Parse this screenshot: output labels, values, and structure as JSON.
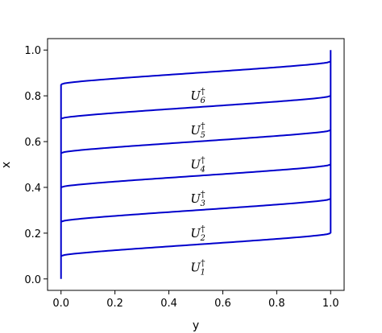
{
  "chart_data": {
    "type": "line",
    "xlabel": "y",
    "ylabel": "x",
    "xlim": [
      -0.05,
      1.05
    ],
    "ylim": [
      -0.05,
      1.05
    ],
    "xticks": [
      "0.0",
      "0.2",
      "0.4",
      "0.6",
      "0.8",
      "1.0"
    ],
    "yticks": [
      "0.0",
      "0.2",
      "0.4",
      "0.6",
      "0.8",
      "1.0"
    ],
    "grid": false,
    "line_color": "#0000cc",
    "series": [
      {
        "name": "U_1^†",
        "base": "U",
        "sub": "1",
        "sup": "†",
        "x_at_left": 0.1,
        "x_at_right": 0.2,
        "label_y": 0.48,
        "label_x": 0.05
      },
      {
        "name": "U_2^†",
        "base": "U",
        "sub": "2",
        "sup": "†",
        "x_at_left": 0.25,
        "x_at_right": 0.35,
        "label_y": 0.48,
        "label_x": 0.2
      },
      {
        "name": "U_3^†",
        "base": "U",
        "sub": "3",
        "sup": "†",
        "x_at_left": 0.4,
        "x_at_right": 0.5,
        "label_y": 0.48,
        "label_x": 0.35
      },
      {
        "name": "U_4^†",
        "base": "U",
        "sub": "4",
        "sup": "†",
        "x_at_left": 0.55,
        "x_at_right": 0.65,
        "label_y": 0.48,
        "label_x": 0.5
      },
      {
        "name": "U_5^†",
        "base": "U",
        "sub": "5",
        "sup": "†",
        "x_at_left": 0.7,
        "x_at_right": 0.8,
        "label_y": 0.48,
        "label_x": 0.65
      },
      {
        "name": "U_6^†",
        "base": "U",
        "sub": "6",
        "sup": "†",
        "x_at_left": 0.85,
        "x_at_right": 0.95,
        "label_y": 0.48,
        "label_x": 0.8
      }
    ],
    "vertical_lines": [
      {
        "y": 0.0,
        "x_from": 0.0,
        "x_to": 0.85
      },
      {
        "y": 1.0,
        "x_from": 0.2,
        "x_to": 1.0
      }
    ]
  }
}
